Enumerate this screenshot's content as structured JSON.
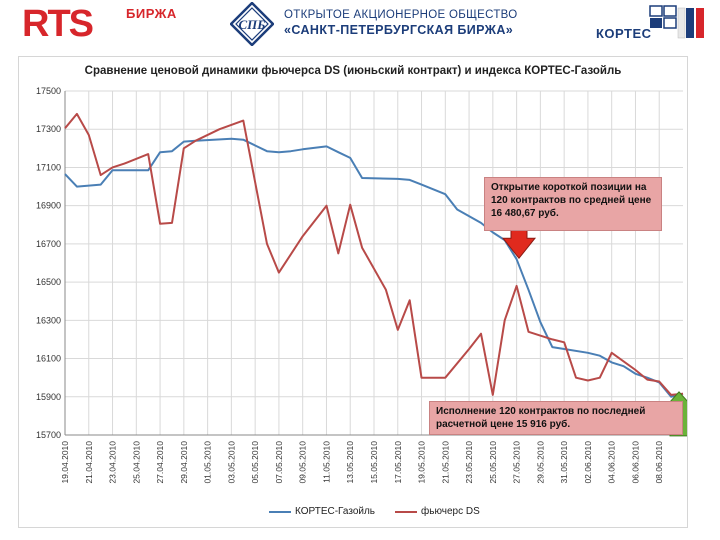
{
  "header": {
    "rts_logo": "RTS",
    "rts_sub": "БИРЖА",
    "spb_line1": "ОТКРЫТОЕ АКЦИОНЕРНОЕ ОБЩЕСТВО",
    "spb_line2": "«САНКТ-ПЕТЕРБУРГСКАЯ БИРЖА»",
    "kortes": "КОРТЕС"
  },
  "colors": {
    "index": "#4a7fb5",
    "futures": "#b84a48",
    "grid": "#d9d9d9",
    "down_arrow": "#e02a1e",
    "up_arrow": "#6bb33a"
  },
  "annotations": {
    "open": "Открытие короткой позиции на\n120 контрактов по средней цене\n16 480,67 руб.",
    "exec": "Исполнение 120 контрактов по последней\nрасчетной цене 15 916 руб."
  },
  "markers": {
    "down_arrow_icon": "arrow-down-icon",
    "up_arrow_icon": "arrow-up-icon"
  },
  "chart_data": {
    "type": "line",
    "title": "Сравнение ценовой динамики фьючерса DS (июньский контракт) и индекса КОРТЕС-Газойль",
    "xlabel": "",
    "ylabel": "",
    "ylim": [
      15700,
      17500
    ],
    "yticks": [
      15700,
      15900,
      16100,
      16300,
      16500,
      16700,
      16900,
      17100,
      17300,
      17500
    ],
    "grid": true,
    "legend_position": "bottom",
    "x_tick_labels": [
      "19.04.2010",
      "21.04.2010",
      "23.04.2010",
      "25.04.2010",
      "27.04.2010",
      "29.04.2010",
      "01.05.2010",
      "03.05.2010",
      "05.05.2010",
      "07.05.2010",
      "09.05.2010",
      "11.05.2010",
      "13.05.2010",
      "15.05.2010",
      "17.05.2010",
      "19.05.2010",
      "21.05.2010",
      "23.05.2010",
      "25.05.2010",
      "27.05.2010",
      "29.05.2010",
      "31.05.2010",
      "02.06.2010",
      "04.06.2010",
      "06.06.2010",
      "08.06.2010"
    ],
    "x_range_days": [
      0,
      50
    ],
    "series": [
      {
        "name": "КОРТЕС-Газойль",
        "points": [
          [
            0,
            17065
          ],
          [
            1,
            17000
          ],
          [
            3,
            17010
          ],
          [
            4,
            17085
          ],
          [
            7,
            17085
          ],
          [
            8,
            17180
          ],
          [
            9,
            17185
          ],
          [
            10,
            17235
          ],
          [
            11,
            17240
          ],
          [
            14,
            17250
          ],
          [
            15,
            17245
          ],
          [
            16,
            17215
          ],
          [
            17,
            17185
          ],
          [
            18,
            17180
          ],
          [
            19,
            17185
          ],
          [
            20,
            17195
          ],
          [
            22,
            17210
          ],
          [
            23,
            17180
          ],
          [
            24,
            17150
          ],
          [
            25,
            17045
          ],
          [
            28,
            17040
          ],
          [
            29,
            17035
          ],
          [
            30,
            17010
          ],
          [
            32,
            16960
          ],
          [
            33,
            16880
          ],
          [
            35,
            16810
          ],
          [
            36,
            16760
          ],
          [
            37,
            16720
          ],
          [
            38,
            16620
          ],
          [
            39,
            16460
          ],
          [
            40,
            16290
          ],
          [
            41,
            16160
          ],
          [
            42,
            16150
          ],
          [
            44,
            16130
          ],
          [
            45,
            16115
          ],
          [
            46,
            16080
          ],
          [
            47,
            16060
          ],
          [
            48,
            16020
          ],
          [
            49,
            16000
          ],
          [
            50,
            15975
          ],
          [
            51,
            15900
          ],
          [
            52,
            15916
          ]
        ]
      },
      {
        "name": "фьючерс DS",
        "points": [
          [
            0,
            17305
          ],
          [
            1,
            17380
          ],
          [
            2,
            17270
          ],
          [
            3,
            17060
          ],
          [
            4,
            17100
          ],
          [
            5,
            17120
          ],
          [
            7,
            17170
          ],
          [
            8,
            16805
          ],
          [
            9,
            16810
          ],
          [
            10,
            17200
          ],
          [
            11,
            17240
          ],
          [
            13,
            17300
          ],
          [
            15,
            17345
          ],
          [
            17,
            16700
          ],
          [
            18,
            16550
          ],
          [
            20,
            16740
          ],
          [
            22,
            16900
          ],
          [
            23,
            16650
          ],
          [
            24,
            16905
          ],
          [
            25,
            16680
          ],
          [
            27,
            16460
          ],
          [
            28,
            16250
          ],
          [
            29,
            16405
          ],
          [
            30,
            16000
          ],
          [
            32,
            16000
          ],
          [
            34,
            16150
          ],
          [
            35,
            16230
          ],
          [
            36,
            15910
          ],
          [
            37,
            16300
          ],
          [
            38,
            16480
          ],
          [
            39,
            16240
          ],
          [
            41,
            16200
          ],
          [
            42,
            16185
          ],
          [
            43,
            16000
          ],
          [
            44,
            15985
          ],
          [
            45,
            16000
          ],
          [
            46,
            16130
          ],
          [
            48,
            16040
          ],
          [
            49,
            15990
          ],
          [
            50,
            15980
          ],
          [
            51,
            15910
          ],
          [
            52,
            15916
          ]
        ]
      }
    ]
  }
}
